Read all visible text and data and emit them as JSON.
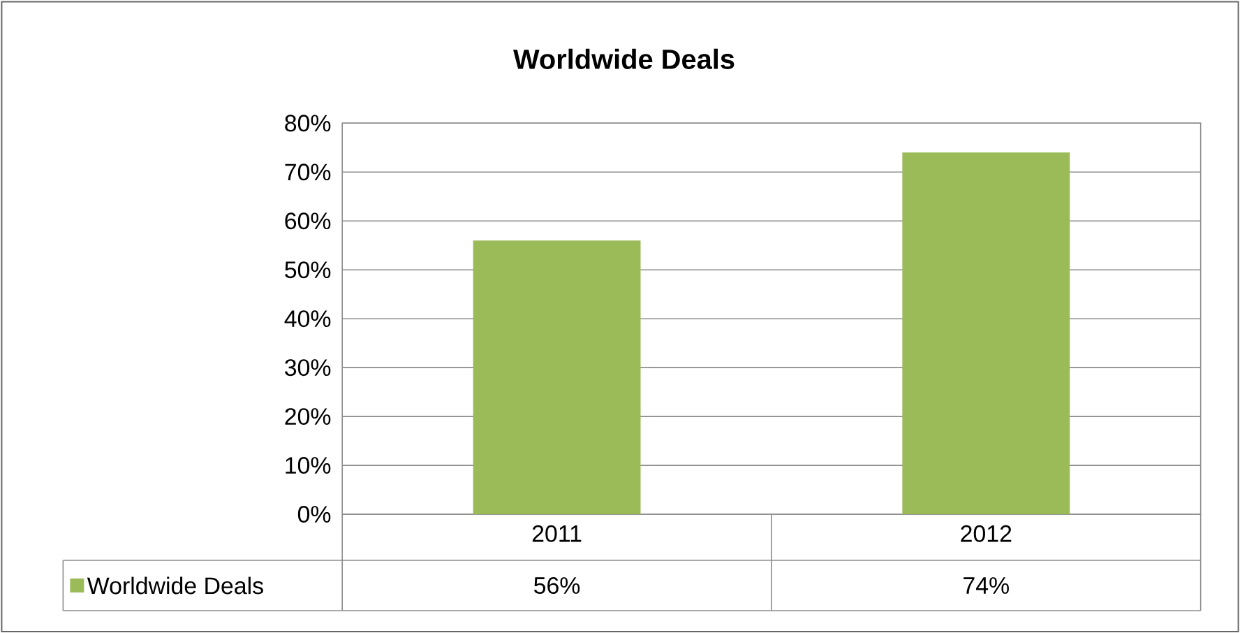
{
  "chart_data": {
    "type": "bar",
    "title": "Worldwide Deals",
    "categories": [
      "2011",
      "2012"
    ],
    "series": [
      {
        "name": "Worldwide Deals",
        "color": "#9bbb59",
        "values": [
          56,
          74
        ],
        "value_labels": [
          "56%",
          "74%"
        ]
      }
    ],
    "ylim": [
      0,
      80
    ],
    "yticks": [
      {
        "value": 0,
        "label": "0%"
      },
      {
        "value": 10,
        "label": "10%"
      },
      {
        "value": 20,
        "label": "20%"
      },
      {
        "value": 30,
        "label": "30%"
      },
      {
        "value": 40,
        "label": "40%"
      },
      {
        "value": 50,
        "label": "50%"
      },
      {
        "value": 60,
        "label": "60%"
      },
      {
        "value": 70,
        "label": "70%"
      },
      {
        "value": 80,
        "label": "80%"
      }
    ],
    "grid": "y",
    "legend": "bottom left"
  }
}
